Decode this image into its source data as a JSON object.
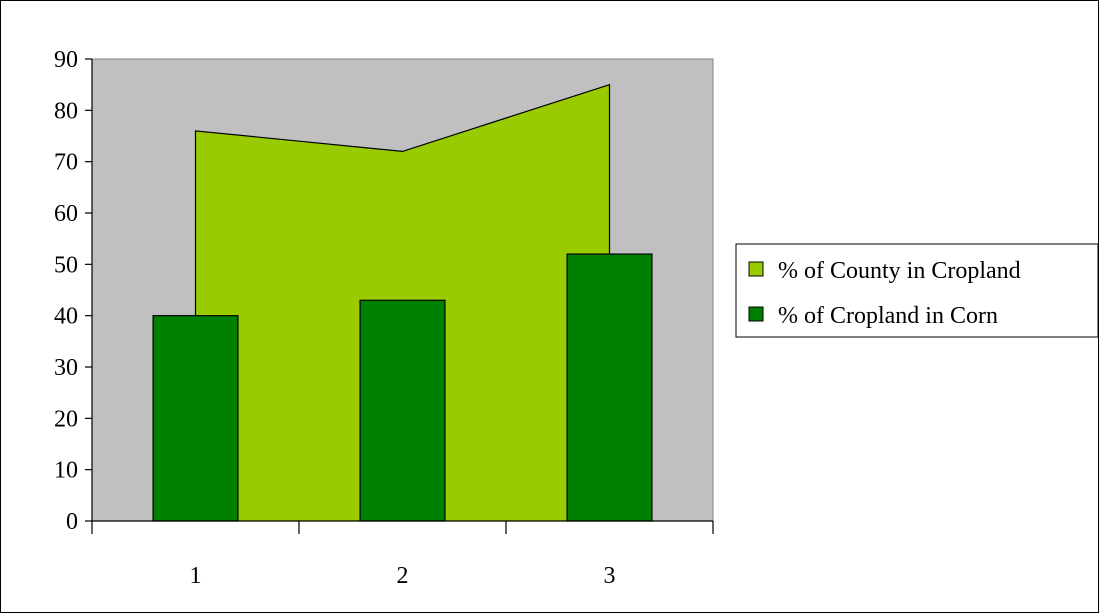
{
  "chart_data": {
    "type": "bar",
    "categories": [
      "1",
      "2",
      "3"
    ],
    "series": [
      {
        "name": "% of County in Cropland",
        "kind": "area",
        "values": [
          76,
          72,
          85
        ],
        "color": "#99cc00"
      },
      {
        "name": "% of Cropland in Corn",
        "kind": "bar",
        "values": [
          40,
          43,
          52
        ],
        "color": "#008000"
      }
    ],
    "ylim": [
      0,
      90
    ],
    "yticks": [
      "0",
      "10",
      "20",
      "30",
      "40",
      "50",
      "60",
      "70",
      "80",
      "90"
    ],
    "plot_background": "#c0c0c0",
    "grid": false,
    "legend_position": "right",
    "title": "",
    "xlabel": "",
    "ylabel": ""
  }
}
